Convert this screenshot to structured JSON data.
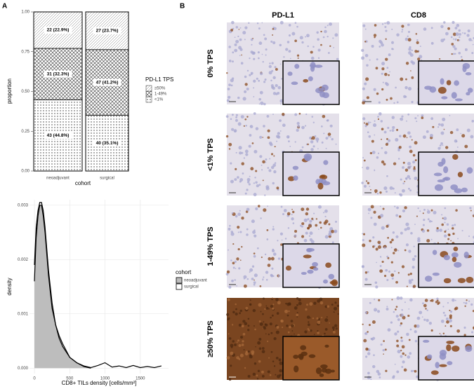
{
  "panel_labels": [
    "A",
    "B"
  ],
  "chart_data": [
    {
      "type": "stacked_bar",
      "y_label": "proportion",
      "x_label": "cohort",
      "legend_title": "PD-L1 TPS",
      "categories": [
        "neoadjuvant",
        "surgical"
      ],
      "series": [
        {
          "name": "<1%",
          "pattern": "dots",
          "values": [
            0.448,
            0.351
          ],
          "value_labels": [
            "43 (44.8%)",
            "40 (35.1%)"
          ]
        },
        {
          "name": "1-49%",
          "pattern": "crosshatch",
          "values": [
            0.323,
            0.412
          ],
          "value_labels": [
            "31 (32.3%)",
            "47 (41.2%)"
          ]
        },
        {
          "name": "≥50%",
          "pattern": "diagonal",
          "values": [
            0.229,
            0.237
          ],
          "value_labels": [
            "22 (22.9%)",
            "27 (23.7%)"
          ]
        }
      ],
      "ylim": [
        0,
        1
      ],
      "yticks": [
        {
          "value": 0,
          "label": "0.00"
        },
        {
          "value": 0.25,
          "label": "0.25"
        },
        {
          "value": 0.5,
          "label": "0.50"
        },
        {
          "value": 0.75,
          "label": "0.75"
        },
        {
          "value": 1,
          "label": "1.00"
        }
      ]
    },
    {
      "type": "density",
      "x_label": "CD8+ TILs density [cells/mm²]",
      "y_label": "density",
      "legend_title": "cohort",
      "grid": true,
      "series": [
        {
          "name": "neoadjuvant",
          "style": "area",
          "color": "#bdbdbd",
          "x": [
            0,
            25,
            50,
            75,
            100,
            125,
            150,
            200,
            250,
            300,
            350,
            400,
            500,
            600,
            700,
            800
          ],
          "values": [
            0.0016,
            0.0024,
            0.0028,
            0.003,
            0.003,
            0.0028,
            0.0025,
            0.0017,
            0.0011,
            0.0008,
            0.00055,
            0.0004,
            0.0002,
            0.0001,
            3e-05,
            0
          ]
        },
        {
          "name": "surgical",
          "style": "line",
          "color": "#000000",
          "x": [
            0,
            25,
            50,
            75,
            100,
            125,
            150,
            200,
            250,
            300,
            350,
            400,
            500,
            600,
            700,
            800,
            900,
            1000,
            1100,
            1200,
            1300,
            1400,
            1500,
            1600,
            1700,
            1800
          ],
          "values": [
            0.0019,
            0.0026,
            0.0029,
            0.00305,
            0.00305,
            0.0029,
            0.0026,
            0.0018,
            0.0012,
            0.0008,
            0.0006,
            0.00045,
            0.0002,
            0.0001,
            4e-05,
            1e-05,
            5e-05,
            0.0001,
            2e-05,
            4e-05,
            1e-05,
            5e-05,
            1e-05,
            3e-05,
            1e-05,
            4e-05
          ]
        }
      ],
      "xlim": [
        -70,
        1900
      ],
      "xticks": [
        0,
        500,
        1000,
        1500
      ],
      "ylim": [
        -0.0001,
        0.0031
      ],
      "yticks": [
        {
          "value": 0,
          "label": "0.000"
        },
        {
          "value": 0.001,
          "label": "0.001"
        },
        {
          "value": 0.002,
          "label": "0.002"
        },
        {
          "value": 0.003,
          "label": "0.003"
        }
      ]
    }
  ],
  "panel_b": {
    "columns": [
      "PD-L1",
      "CD8"
    ],
    "rows": [
      "0% TPS",
      "<1% TPS",
      "1-49% TPS",
      "≥50% TPS"
    ]
  }
}
